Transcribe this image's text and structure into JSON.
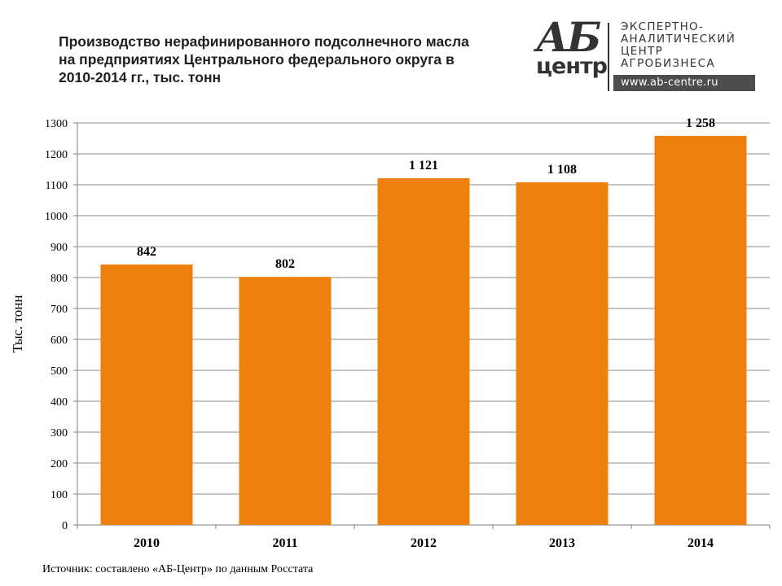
{
  "header": {
    "title": "Производство нерафинированного подсолнечного масла на предприятиях Центрального федерального округа в 2010-2014 гг., тыс. тонн"
  },
  "logo": {
    "mark_top": "АБ",
    "mark_bottom": "центр",
    "lines": [
      "ЭКСПЕРТНО-",
      "АНАЛИТИЧЕСКИЙ",
      "ЦЕНТР",
      "АГРОБИЗНЕСА"
    ],
    "url": "www.ab-centre.ru"
  },
  "footer": {
    "source": "Источник: составлено «АБ-Центр»   по данным Росстата"
  },
  "colors": {
    "bar": "#EE810D",
    "grid": "#8c8c8c",
    "axis": "#7f7f7f",
    "text": "#000000"
  },
  "chart_data": {
    "type": "bar",
    "categories": [
      "2010",
      "2011",
      "2012",
      "2013",
      "2014"
    ],
    "values": [
      842,
      802,
      1121,
      1108,
      1258
    ],
    "data_labels": [
      "842",
      "802",
      "1 121",
      "1 108",
      "1 258"
    ],
    "ylabel": "Тыс. тонн",
    "xlabel": "",
    "ylim": [
      0,
      1300
    ],
    "yticks": [
      0,
      100,
      200,
      300,
      400,
      500,
      600,
      700,
      800,
      900,
      1000,
      1100,
      1200,
      1300
    ],
    "grid": true,
    "legend": "none"
  }
}
